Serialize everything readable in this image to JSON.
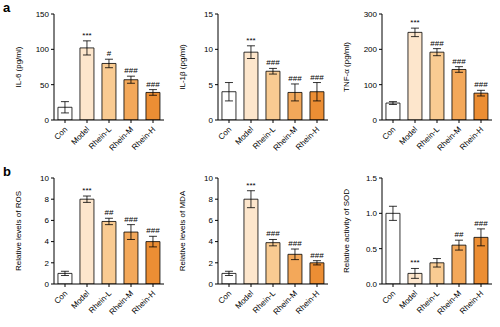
{
  "panel_labels": [
    "a",
    "b"
  ],
  "chart_data": [
    {
      "type": "bar",
      "y_label": "IL-6 (pg/ml)",
      "categories": [
        "Con",
        "Model",
        "Rhein-L",
        "Rhein-M",
        "Rhein-H"
      ],
      "values": [
        18,
        102,
        80,
        57,
        39
      ],
      "errors": [
        8,
        10,
        6,
        5,
        4
      ],
      "annotations": [
        null,
        "***",
        "#",
        "###",
        "###"
      ],
      "colors": [
        "#ffffff",
        "#fde6cc",
        "#f9cb92",
        "#f3a85a",
        "#ec8e34"
      ],
      "ylim": [
        0,
        150
      ],
      "yticks": [
        0,
        50,
        100,
        150
      ]
    },
    {
      "type": "bar",
      "y_label": "IL-1β (pg/ml)",
      "categories": [
        "Con",
        "Model",
        "Rhein-L",
        "Rhein-M",
        "Rhein-H"
      ],
      "values": [
        4,
        9.6,
        6.9,
        3.9,
        4
      ],
      "errors": [
        1.3,
        0.9,
        0.4,
        1.2,
        1.3
      ],
      "annotations": [
        null,
        "***",
        "###",
        "###",
        "###"
      ],
      "colors": [
        "#ffffff",
        "#fde6cc",
        "#f9cb92",
        "#f3a85a",
        "#ec8e34"
      ],
      "ylim": [
        0,
        15
      ],
      "yticks": [
        0,
        5,
        10,
        15
      ]
    },
    {
      "type": "bar",
      "y_label": "TNF-α (pg/ml)",
      "categories": [
        "Con",
        "Model",
        "Rhein-L",
        "Rhein-M",
        "Rhein-H"
      ],
      "values": [
        48,
        248,
        192,
        143,
        76
      ],
      "errors": [
        4,
        12,
        10,
        8,
        8
      ],
      "annotations": [
        null,
        "***",
        "###",
        "###",
        "###"
      ],
      "colors": [
        "#ffffff",
        "#fde6cc",
        "#f9cb92",
        "#f3a85a",
        "#ec8e34"
      ],
      "ylim": [
        0,
        300
      ],
      "yticks": [
        0,
        100,
        200,
        300
      ]
    },
    {
      "type": "bar",
      "y_label": "Relative levels of ROS",
      "categories": [
        "Con",
        "Model",
        "Rhein-L",
        "Rhein-M",
        "Rhein-H"
      ],
      "values": [
        1,
        8,
        5.9,
        4.9,
        4
      ],
      "errors": [
        0.2,
        0.3,
        0.3,
        0.7,
        0.5
      ],
      "annotations": [
        null,
        "***",
        "##",
        "###",
        "###"
      ],
      "colors": [
        "#ffffff",
        "#fde6cc",
        "#f9cb92",
        "#f3a85a",
        "#ec8e34"
      ],
      "ylim": [
        0,
        10
      ],
      "yticks": [
        0,
        2,
        4,
        6,
        8,
        10
      ]
    },
    {
      "type": "bar",
      "y_label": "Relative levels of MDA",
      "categories": [
        "Con",
        "Model",
        "Rhein-L",
        "Rhein-M",
        "Rhein-H"
      ],
      "values": [
        1,
        8,
        3.9,
        2.8,
        2
      ],
      "errors": [
        0.2,
        0.8,
        0.3,
        0.5,
        0.2
      ],
      "annotations": [
        null,
        "***",
        "###",
        "###",
        "###"
      ],
      "colors": [
        "#ffffff",
        "#fde6cc",
        "#f9cb92",
        "#f3a85a",
        "#ec8e34"
      ],
      "ylim": [
        0,
        10
      ],
      "yticks": [
        0,
        2,
        4,
        6,
        8,
        10
      ]
    },
    {
      "type": "bar",
      "y_label": "Relative activity of SOD",
      "categories": [
        "Con",
        "Model",
        "Rhein-L",
        "Rhein-M",
        "Rhein-H"
      ],
      "values": [
        1,
        0.15,
        0.3,
        0.55,
        0.66
      ],
      "errors": [
        0.1,
        0.07,
        0.06,
        0.07,
        0.12
      ],
      "annotations": [
        null,
        "***",
        null,
        "##",
        "###"
      ],
      "colors": [
        "#ffffff",
        "#fde6cc",
        "#f9cb92",
        "#f3a85a",
        "#ec8e34"
      ],
      "ylim": [
        0,
        1.5
      ],
      "yticks": [
        {
          "value": 0,
          "label": "0.0"
        },
        0.5,
        {
          "value": 1,
          "label": "1.0"
        },
        1.5
      ]
    }
  ]
}
